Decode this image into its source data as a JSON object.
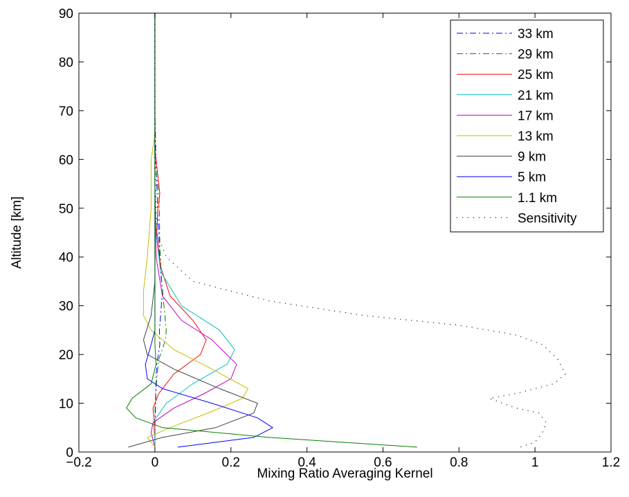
{
  "chart_data": {
    "type": "line",
    "title": "",
    "xlabel": "Mixing Ratio Averaging Kernel",
    "ylabel": "Altitude [km]",
    "xlim": [
      -0.2,
      1.2
    ],
    "ylim": [
      0,
      90
    ],
    "xticks": [
      -0.2,
      0,
      0.2,
      0.4,
      0.6,
      0.8,
      1,
      1.2
    ],
    "xtick_labels": [
      "−0.2",
      "0",
      "0.2",
      "0.4",
      "0.6",
      "0.8",
      "1",
      "1.2"
    ],
    "yticks": [
      0,
      10,
      20,
      30,
      40,
      50,
      60,
      70,
      80,
      90
    ],
    "ytick_labels": [
      "0",
      "10",
      "20",
      "30",
      "40",
      "50",
      "60",
      "70",
      "80",
      "90"
    ],
    "grid": false,
    "legend_position": "top-right",
    "series": [
      {
        "name": "33 km",
        "color": "#0000ff",
        "dash": "dashdot",
        "points": [
          [
            0,
            90
          ],
          [
            0,
            70
          ],
          [
            0.002,
            62
          ],
          [
            0.005,
            55
          ],
          [
            0.008,
            48
          ],
          [
            0.012,
            42
          ],
          [
            0.015,
            37
          ],
          [
            0.02,
            33
          ],
          [
            0.015,
            28
          ],
          [
            0.012,
            25
          ],
          [
            0.013,
            22
          ],
          [
            0.005,
            18
          ],
          [
            0.003,
            15
          ],
          [
            0.002,
            10
          ],
          [
            0,
            5
          ],
          [
            0,
            1
          ]
        ]
      },
      {
        "name": "29 km",
        "color": "#008000",
        "dash": "dashdot",
        "points": [
          [
            0,
            90
          ],
          [
            0,
            70
          ],
          [
            0,
            60
          ],
          [
            0.01,
            53
          ],
          [
            0.012,
            50
          ],
          [
            0.013,
            42
          ],
          [
            0.018,
            35
          ],
          [
            0.025,
            29
          ],
          [
            0.03,
            25
          ],
          [
            0.028,
            23
          ],
          [
            0.01,
            19
          ],
          [
            0.005,
            15
          ],
          [
            0.002,
            12
          ],
          [
            0,
            8
          ],
          [
            0,
            1
          ]
        ]
      },
      {
        "name": "25 km",
        "color": "#ff0000",
        "dash": "solid",
        "points": [
          [
            0,
            90
          ],
          [
            0,
            62
          ],
          [
            0.013,
            53
          ],
          [
            0.008,
            50
          ],
          [
            0.005,
            45
          ],
          [
            0.015,
            38
          ],
          [
            0.04,
            32
          ],
          [
            0.1,
            27
          ],
          [
            0.135,
            23
          ],
          [
            0.12,
            20
          ],
          [
            0.05,
            16
          ],
          [
            0.01,
            12
          ],
          [
            -0.005,
            9
          ],
          [
            0,
            5
          ],
          [
            0,
            1
          ]
        ]
      },
      {
        "name": "21 km",
        "color": "#00bfbf",
        "dash": "solid",
        "points": [
          [
            0,
            90
          ],
          [
            0,
            65
          ],
          [
            0,
            55
          ],
          [
            0.003,
            45
          ],
          [
            0.015,
            37
          ],
          [
            0.07,
            30
          ],
          [
            0.17,
            25
          ],
          [
            0.21,
            21
          ],
          [
            0.19,
            18
          ],
          [
            0.1,
            14
          ],
          [
            0.03,
            10
          ],
          [
            -0.005,
            6
          ],
          [
            0,
            3
          ],
          [
            0,
            1
          ]
        ]
      },
      {
        "name": "17 km",
        "color": "#bf00bf",
        "dash": "solid",
        "points": [
          [
            0,
            90
          ],
          [
            0,
            55
          ],
          [
            0.003,
            40
          ],
          [
            0.02,
            32
          ],
          [
            0.07,
            27
          ],
          [
            0.15,
            23
          ],
          [
            0.215,
            18
          ],
          [
            0.2,
            15
          ],
          [
            0.13,
            12
          ],
          [
            0.05,
            9
          ],
          [
            -0.005,
            6
          ],
          [
            -0.01,
            4
          ],
          [
            0,
            1
          ]
        ]
      },
      {
        "name": "13 km",
        "color": "#bfbf00",
        "dash": "solid",
        "points": [
          [
            0,
            90
          ],
          [
            0,
            65
          ],
          [
            -0.01,
            60
          ],
          [
            -0.01,
            50
          ],
          [
            -0.02,
            40
          ],
          [
            -0.03,
            33
          ],
          [
            -0.03,
            28
          ],
          [
            -0.01,
            25
          ],
          [
            0.05,
            21
          ],
          [
            0.15,
            17
          ],
          [
            0.245,
            13
          ],
          [
            0.23,
            11
          ],
          [
            0.14,
            8
          ],
          [
            0.04,
            5
          ],
          [
            -0.02,
            3
          ],
          [
            0,
            1
          ]
        ]
      },
      {
        "name": "9 km",
        "color": "#404040",
        "dash": "solid",
        "points": [
          [
            0,
            90
          ],
          [
            0,
            50
          ],
          [
            0,
            35
          ],
          [
            -0.01,
            28
          ],
          [
            -0.03,
            23
          ],
          [
            -0.02,
            20
          ],
          [
            0.05,
            17
          ],
          [
            0.17,
            13
          ],
          [
            0.27,
            10
          ],
          [
            0.26,
            8
          ],
          [
            0.16,
            5
          ],
          [
            0.02,
            3
          ],
          [
            -0.07,
            1
          ]
        ]
      },
      {
        "name": "5 km",
        "color": "#0000ff",
        "dash": "solid",
        "points": [
          [
            0,
            90
          ],
          [
            0,
            35
          ],
          [
            0,
            25
          ],
          [
            -0.01,
            22
          ],
          [
            -0.025,
            18
          ],
          [
            -0.02,
            15
          ],
          [
            0.02,
            13
          ],
          [
            0.15,
            10
          ],
          [
            0.27,
            7
          ],
          [
            0.31,
            5
          ],
          [
            0.26,
            3
          ],
          [
            0.06,
            1
          ]
        ]
      },
      {
        "name": "1.1 km",
        "color": "#008000",
        "dash": "solid",
        "points": [
          [
            0,
            90
          ],
          [
            0,
            40
          ],
          [
            0,
            30
          ],
          [
            0,
            22
          ],
          [
            0.003,
            18
          ],
          [
            -0.01,
            14
          ],
          [
            -0.06,
            11
          ],
          [
            -0.075,
            9
          ],
          [
            -0.05,
            7
          ],
          [
            0.02,
            5
          ],
          [
            0.3,
            3
          ],
          [
            0.69,
            1
          ]
        ]
      },
      {
        "name": "Sensitivity",
        "color": "#000000",
        "dash": "dotted",
        "points": [
          [
            0,
            90
          ],
          [
            0,
            70
          ],
          [
            0,
            60
          ],
          [
            0.005,
            45
          ],
          [
            0.03,
            40
          ],
          [
            0.1,
            35
          ],
          [
            0.3,
            31
          ],
          [
            0.55,
            28
          ],
          [
            0.8,
            26
          ],
          [
            0.95,
            24
          ],
          [
            1.02,
            22
          ],
          [
            1.06,
            19
          ],
          [
            1.08,
            16
          ],
          [
            1.05,
            14
          ],
          [
            0.95,
            12
          ],
          [
            0.88,
            11
          ],
          [
            0.95,
            9
          ],
          [
            1.01,
            8
          ],
          [
            1.03,
            6
          ],
          [
            1.02,
            4
          ],
          [
            1.0,
            2
          ],
          [
            0.96,
            1
          ]
        ]
      }
    ]
  }
}
